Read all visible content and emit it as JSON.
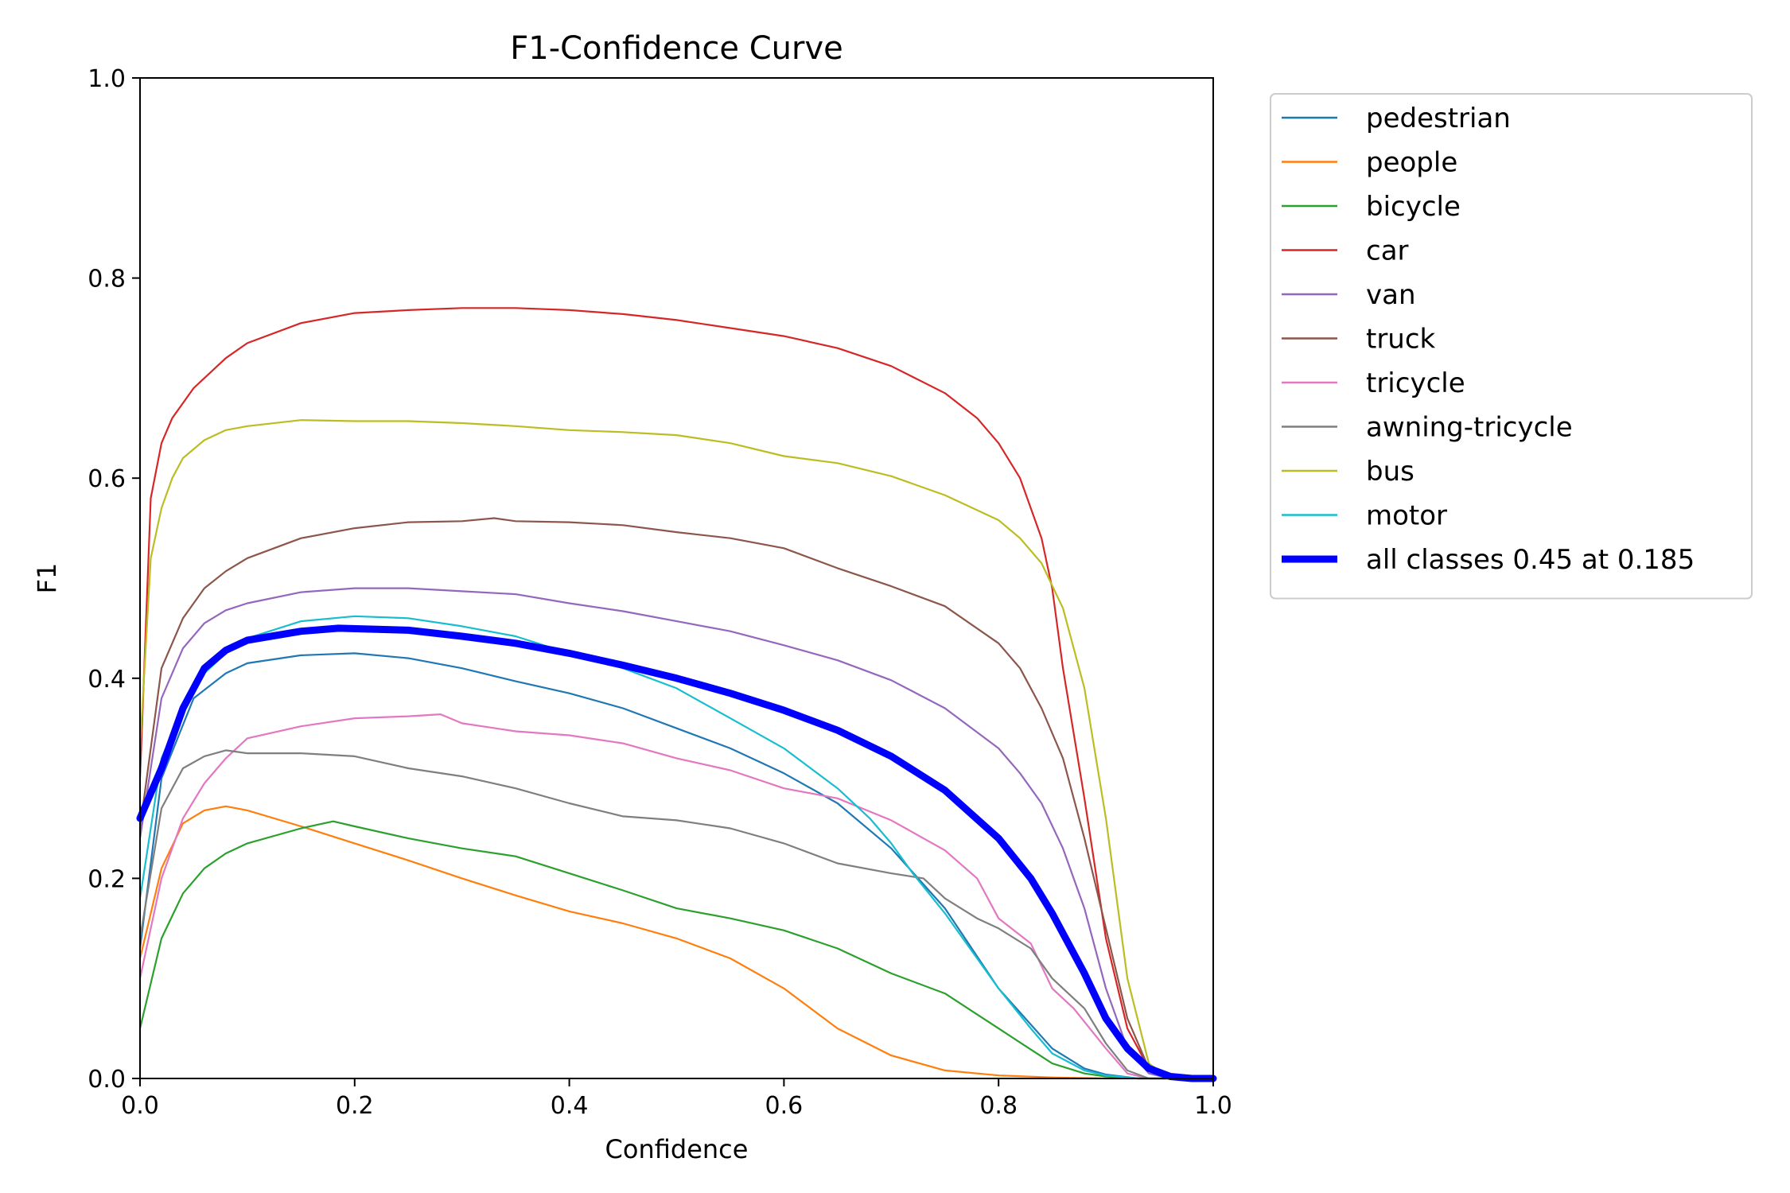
{
  "chart_data": {
    "type": "line",
    "title": "F1-Confidence Curve",
    "xlabel": "Confidence",
    "ylabel": "F1",
    "xlim": [
      0,
      1
    ],
    "ylim": [
      0,
      1
    ],
    "xticks": [
      "0.0",
      "0.2",
      "0.4",
      "0.6",
      "0.8",
      "1.0"
    ],
    "yticks": [
      "0.0",
      "0.2",
      "0.4",
      "0.6",
      "0.8",
      "1.0"
    ],
    "legend_position": "outside-top-right",
    "series": [
      {
        "name": "pedestrian",
        "color": "#1f77b4",
        "x": [
          0.0,
          0.02,
          0.05,
          0.08,
          0.1,
          0.15,
          0.2,
          0.25,
          0.3,
          0.35,
          0.4,
          0.45,
          0.5,
          0.55,
          0.6,
          0.65,
          0.7,
          0.75,
          0.8,
          0.85,
          0.88,
          0.9,
          0.93,
          0.95,
          1.0
        ],
        "y": [
          0.13,
          0.3,
          0.38,
          0.405,
          0.415,
          0.423,
          0.425,
          0.42,
          0.41,
          0.397,
          0.385,
          0.37,
          0.35,
          0.33,
          0.305,
          0.275,
          0.23,
          0.17,
          0.09,
          0.03,
          0.01,
          0.004,
          0.0,
          0.0,
          0.0
        ]
      },
      {
        "name": "people",
        "color": "#ff7f0e",
        "x": [
          0.0,
          0.02,
          0.04,
          0.06,
          0.08,
          0.1,
          0.15,
          0.2,
          0.25,
          0.3,
          0.35,
          0.4,
          0.45,
          0.5,
          0.55,
          0.6,
          0.65,
          0.7,
          0.75,
          0.8,
          0.85,
          0.9,
          1.0
        ],
        "y": [
          0.12,
          0.21,
          0.255,
          0.268,
          0.272,
          0.268,
          0.252,
          0.235,
          0.218,
          0.2,
          0.183,
          0.167,
          0.155,
          0.14,
          0.12,
          0.09,
          0.05,
          0.023,
          0.008,
          0.003,
          0.001,
          0.0,
          0.0
        ]
      },
      {
        "name": "bicycle",
        "color": "#2ca02c",
        "x": [
          0.0,
          0.02,
          0.04,
          0.06,
          0.08,
          0.1,
          0.15,
          0.18,
          0.2,
          0.25,
          0.3,
          0.35,
          0.4,
          0.45,
          0.5,
          0.55,
          0.6,
          0.65,
          0.7,
          0.75,
          0.8,
          0.85,
          0.88,
          0.9,
          0.93,
          1.0
        ],
        "y": [
          0.05,
          0.14,
          0.185,
          0.21,
          0.225,
          0.235,
          0.25,
          0.257,
          0.252,
          0.24,
          0.23,
          0.222,
          0.205,
          0.188,
          0.17,
          0.16,
          0.148,
          0.13,
          0.105,
          0.085,
          0.05,
          0.015,
          0.005,
          0.002,
          0.0,
          0.0
        ]
      },
      {
        "name": "car",
        "color": "#d62728",
        "x": [
          0.0,
          0.01,
          0.02,
          0.03,
          0.05,
          0.08,
          0.1,
          0.15,
          0.2,
          0.25,
          0.3,
          0.35,
          0.4,
          0.45,
          0.5,
          0.55,
          0.6,
          0.65,
          0.7,
          0.75,
          0.78,
          0.8,
          0.82,
          0.84,
          0.85,
          0.86,
          0.88,
          0.9,
          0.92,
          0.94,
          0.96,
          1.0
        ],
        "y": [
          0.3,
          0.58,
          0.635,
          0.66,
          0.69,
          0.72,
          0.735,
          0.755,
          0.765,
          0.768,
          0.77,
          0.77,
          0.768,
          0.764,
          0.758,
          0.75,
          0.742,
          0.73,
          0.712,
          0.685,
          0.66,
          0.635,
          0.6,
          0.54,
          0.49,
          0.41,
          0.28,
          0.14,
          0.05,
          0.01,
          0.0,
          0.0
        ]
      },
      {
        "name": "van",
        "color": "#9467bd",
        "x": [
          0.0,
          0.02,
          0.04,
          0.06,
          0.08,
          0.1,
          0.15,
          0.2,
          0.25,
          0.3,
          0.35,
          0.4,
          0.45,
          0.5,
          0.55,
          0.6,
          0.65,
          0.7,
          0.75,
          0.8,
          0.82,
          0.84,
          0.86,
          0.88,
          0.9,
          0.92,
          0.94,
          0.96,
          1.0
        ],
        "y": [
          0.24,
          0.38,
          0.43,
          0.455,
          0.468,
          0.475,
          0.486,
          0.49,
          0.49,
          0.487,
          0.484,
          0.475,
          0.467,
          0.457,
          0.447,
          0.433,
          0.418,
          0.398,
          0.37,
          0.33,
          0.305,
          0.275,
          0.23,
          0.17,
          0.09,
          0.03,
          0.005,
          0.0,
          0.0
        ]
      },
      {
        "name": "truck",
        "color": "#8c564b",
        "x": [
          0.0,
          0.02,
          0.04,
          0.06,
          0.08,
          0.1,
          0.15,
          0.2,
          0.25,
          0.3,
          0.33,
          0.35,
          0.4,
          0.45,
          0.5,
          0.55,
          0.6,
          0.65,
          0.7,
          0.75,
          0.8,
          0.82,
          0.84,
          0.86,
          0.88,
          0.9,
          0.92,
          0.94,
          0.96,
          1.0
        ],
        "y": [
          0.25,
          0.41,
          0.46,
          0.49,
          0.507,
          0.52,
          0.54,
          0.55,
          0.556,
          0.557,
          0.56,
          0.557,
          0.556,
          0.553,
          0.546,
          0.54,
          0.53,
          0.51,
          0.492,
          0.472,
          0.435,
          0.41,
          0.37,
          0.32,
          0.24,
          0.15,
          0.06,
          0.01,
          0.0,
          0.0
        ]
      },
      {
        "name": "tricycle",
        "color": "#e377c2",
        "x": [
          0.0,
          0.02,
          0.04,
          0.06,
          0.08,
          0.1,
          0.15,
          0.2,
          0.25,
          0.28,
          0.3,
          0.35,
          0.4,
          0.45,
          0.5,
          0.55,
          0.6,
          0.65,
          0.7,
          0.75,
          0.78,
          0.8,
          0.83,
          0.85,
          0.87,
          0.9,
          0.92,
          0.94,
          1.0
        ],
        "y": [
          0.1,
          0.2,
          0.26,
          0.295,
          0.32,
          0.34,
          0.352,
          0.36,
          0.362,
          0.364,
          0.355,
          0.347,
          0.343,
          0.335,
          0.32,
          0.308,
          0.29,
          0.28,
          0.258,
          0.228,
          0.2,
          0.16,
          0.135,
          0.09,
          0.07,
          0.03,
          0.005,
          0.0,
          0.0
        ]
      },
      {
        "name": "awning-tricycle",
        "color": "#7f7f7f",
        "x": [
          0.0,
          0.02,
          0.04,
          0.06,
          0.08,
          0.1,
          0.15,
          0.2,
          0.25,
          0.3,
          0.35,
          0.4,
          0.45,
          0.5,
          0.55,
          0.6,
          0.65,
          0.7,
          0.73,
          0.75,
          0.78,
          0.8,
          0.83,
          0.85,
          0.88,
          0.9,
          0.92,
          0.94,
          1.0
        ],
        "y": [
          0.14,
          0.27,
          0.31,
          0.322,
          0.328,
          0.325,
          0.325,
          0.322,
          0.31,
          0.302,
          0.29,
          0.275,
          0.262,
          0.258,
          0.25,
          0.235,
          0.215,
          0.205,
          0.2,
          0.18,
          0.16,
          0.15,
          0.13,
          0.1,
          0.07,
          0.035,
          0.008,
          0.0,
          0.0
        ]
      },
      {
        "name": "bus",
        "color": "#bcbd22",
        "x": [
          0.0,
          0.01,
          0.02,
          0.03,
          0.04,
          0.06,
          0.08,
          0.1,
          0.15,
          0.2,
          0.25,
          0.3,
          0.35,
          0.4,
          0.45,
          0.5,
          0.55,
          0.6,
          0.65,
          0.7,
          0.75,
          0.8,
          0.82,
          0.84,
          0.86,
          0.88,
          0.9,
          0.92,
          0.94,
          0.96,
          1.0
        ],
        "y": [
          0.33,
          0.52,
          0.57,
          0.6,
          0.62,
          0.638,
          0.648,
          0.652,
          0.658,
          0.657,
          0.657,
          0.655,
          0.652,
          0.648,
          0.646,
          0.643,
          0.635,
          0.622,
          0.615,
          0.602,
          0.583,
          0.558,
          0.54,
          0.515,
          0.47,
          0.39,
          0.26,
          0.1,
          0.015,
          0.0,
          0.0
        ]
      },
      {
        "name": "motor",
        "color": "#17becf",
        "x": [
          0.0,
          0.02,
          0.04,
          0.06,
          0.08,
          0.1,
          0.15,
          0.2,
          0.25,
          0.3,
          0.35,
          0.4,
          0.45,
          0.5,
          0.55,
          0.6,
          0.65,
          0.68,
          0.7,
          0.72,
          0.75,
          0.78,
          0.8,
          0.83,
          0.85,
          0.88,
          0.9,
          0.93,
          1.0
        ],
        "y": [
          0.18,
          0.32,
          0.37,
          0.405,
          0.425,
          0.44,
          0.457,
          0.462,
          0.46,
          0.452,
          0.442,
          0.425,
          0.41,
          0.39,
          0.36,
          0.33,
          0.29,
          0.26,
          0.235,
          0.205,
          0.165,
          0.12,
          0.09,
          0.05,
          0.025,
          0.008,
          0.003,
          0.0,
          0.0
        ]
      },
      {
        "name": "all classes 0.45 at 0.185",
        "color": "#0000ff",
        "bold": true,
        "x": [
          0.0,
          0.02,
          0.04,
          0.06,
          0.08,
          0.1,
          0.15,
          0.185,
          0.25,
          0.3,
          0.35,
          0.4,
          0.45,
          0.5,
          0.55,
          0.6,
          0.65,
          0.7,
          0.75,
          0.8,
          0.83,
          0.85,
          0.88,
          0.9,
          0.92,
          0.94,
          0.96,
          0.98,
          1.0
        ],
        "y": [
          0.26,
          0.31,
          0.37,
          0.41,
          0.428,
          0.438,
          0.447,
          0.45,
          0.448,
          0.442,
          0.435,
          0.425,
          0.413,
          0.4,
          0.385,
          0.368,
          0.348,
          0.322,
          0.288,
          0.24,
          0.2,
          0.165,
          0.105,
          0.06,
          0.03,
          0.01,
          0.002,
          0.0,
          0.0
        ]
      }
    ]
  }
}
